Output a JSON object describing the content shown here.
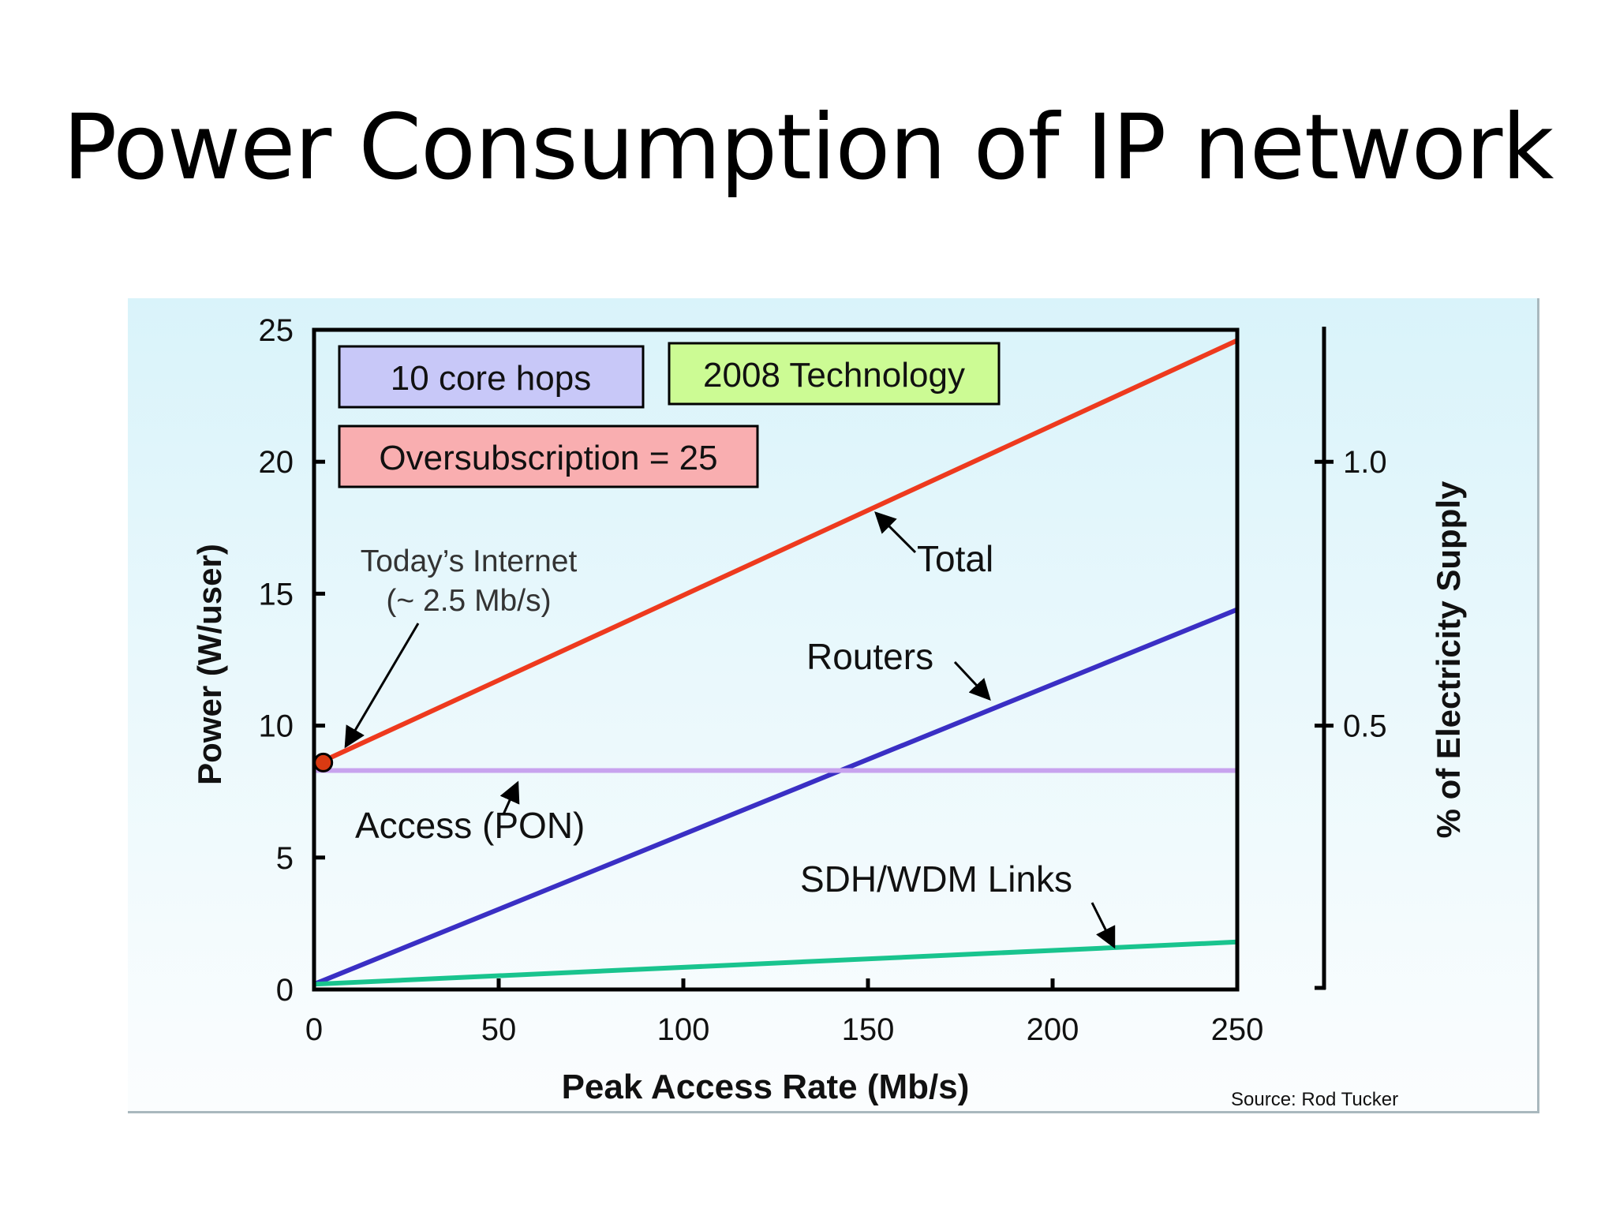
{
  "slide": {
    "title": "Power Consumption of IP network",
    "source": "Source: Rod Tucker"
  },
  "chart_data": {
    "type": "line",
    "title": "",
    "xlabel": "Peak Access Rate (Mb/s)",
    "ylabel": "Power (W/user)",
    "y2label": "% of Electricity Supply",
    "xlim": [
      0,
      250
    ],
    "ylim": [
      0,
      25
    ],
    "y2lim": [
      0,
      1.25
    ],
    "x_ticks": [
      "0",
      "50",
      "100",
      "150",
      "200",
      "250"
    ],
    "y_ticks": [
      "0",
      "5",
      "10",
      "15",
      "20",
      "25"
    ],
    "y2_ticks": [
      "0.5",
      "1.0"
    ],
    "grid": false,
    "series": [
      {
        "name": "Total",
        "color": "#ee3a1e",
        "x": [
          0,
          250
        ],
        "y": [
          8.5,
          24.6
        ]
      },
      {
        "name": "Routers",
        "color": "#3a2fc4",
        "x": [
          0,
          250
        ],
        "y": [
          0.2,
          14.4
        ]
      },
      {
        "name": "Access (PON)",
        "color": "#c8a3ee",
        "x": [
          0,
          250
        ],
        "y": [
          8.3,
          8.3
        ]
      },
      {
        "name": "SDH/WDM Links",
        "color": "#19c48e",
        "x": [
          0,
          250
        ],
        "y": [
          0.2,
          1.8
        ]
      }
    ],
    "marker": {
      "x": 2.5,
      "y": 8.6,
      "color": "#d93a12"
    },
    "boxes": [
      {
        "text": "10 core hops",
        "fill": "#c8c8f8"
      },
      {
        "text": "2008 Technology",
        "fill": "#ccfb94"
      },
      {
        "text": "Oversubscription = 25",
        "fill": "#f9aeb0"
      }
    ],
    "annotations": {
      "today_line1": "Today’s Internet",
      "today_line2": "(~ 2.5 Mb/s)",
      "total": "Total",
      "routers": "Routers",
      "access": "Access (PON)",
      "links": "SDH/WDM Links"
    }
  }
}
